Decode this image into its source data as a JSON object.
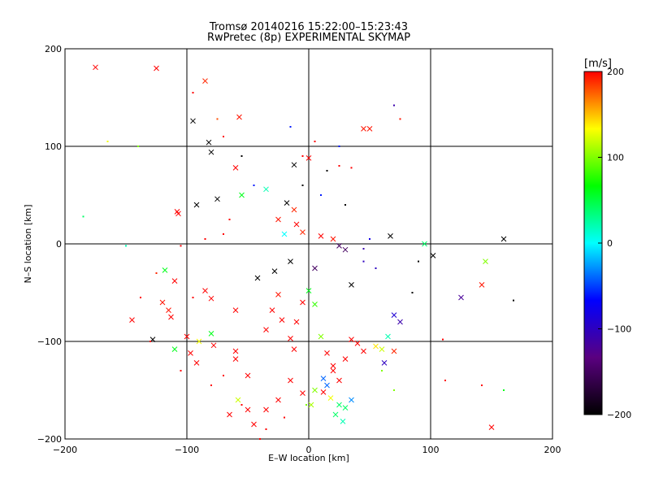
{
  "chart_data": {
    "type": "scatter",
    "title": "Tromsø 20140216 15:22:00–15:23:43",
    "subtitle": "RwPretec (8p) EXPERIMENTAL SKYMAP",
    "xlabel": "E–W location [km]",
    "ylabel": "N–S location [km]",
    "xlim": [
      -200,
      200
    ],
    "ylim": [
      -200,
      200
    ],
    "xticks": [
      -200,
      -100,
      0,
      100,
      200
    ],
    "yticks": [
      -200,
      -100,
      0,
      100,
      200
    ],
    "xtick_labels": [
      "−200",
      "−100",
      "0",
      "100",
      "200"
    ],
    "ytick_labels": [
      "−200",
      "−100",
      "0",
      "100",
      "200"
    ],
    "grid": true,
    "colorbar": {
      "label": "[m/s]",
      "range": [
        -200,
        200
      ],
      "ticks": [
        200,
        100,
        0,
        -100,
        -200
      ],
      "tick_labels": [
        "200",
        "100",
        "0",
        "−100",
        "−200"
      ],
      "colors": [
        "#000000",
        "#5a0080",
        "#0000ff",
        "#00ffff",
        "#00ff00",
        "#ffff00",
        "#ff0000"
      ]
    },
    "series": [
      {
        "marker": "x",
        "points": [
          [
            -175,
            181,
            200
          ],
          [
            -125,
            180,
            200
          ],
          [
            -85,
            167,
            190
          ],
          [
            -57,
            130,
            195
          ],
          [
            -95,
            126,
            -200
          ],
          [
            -82,
            104,
            -200
          ],
          [
            -80,
            94,
            -200
          ],
          [
            45,
            118,
            195
          ],
          [
            50,
            118,
            195
          ],
          [
            -60,
            78,
            200
          ],
          [
            -12,
            81,
            -200
          ],
          [
            0,
            88,
            200
          ],
          [
            -75,
            46,
            -200
          ],
          [
            -92,
            40,
            -200
          ],
          [
            -55,
            50,
            60
          ],
          [
            -35,
            56,
            20
          ],
          [
            -18,
            42,
            -200
          ],
          [
            -12,
            35,
            190
          ],
          [
            -25,
            25,
            195
          ],
          [
            -10,
            20,
            200
          ],
          [
            -108,
            33,
            200
          ],
          [
            -107,
            31,
            200
          ],
          [
            -20,
            10,
            0
          ],
          [
            -5,
            12,
            190
          ],
          [
            10,
            8,
            200
          ],
          [
            20,
            5,
            195
          ],
          [
            25,
            -2,
            -150
          ],
          [
            30,
            -6,
            -150
          ],
          [
            67,
            8,
            -200
          ],
          [
            95,
            0,
            40
          ],
          [
            102,
            -12,
            -200
          ],
          [
            160,
            5,
            -200
          ],
          [
            145,
            -18,
            100
          ],
          [
            142,
            -42,
            195
          ],
          [
            125,
            -55,
            -120
          ],
          [
            -118,
            -27,
            60
          ],
          [
            -110,
            -38,
            200
          ],
          [
            -85,
            -48,
            200
          ],
          [
            -80,
            -56,
            200
          ],
          [
            -60,
            -68,
            200
          ],
          [
            -60,
            -110,
            200
          ],
          [
            -120,
            -60,
            195
          ],
          [
            -115,
            -68,
            195
          ],
          [
            -113,
            -75,
            200
          ],
          [
            -145,
            -78,
            200
          ],
          [
            -128,
            -98,
            -200
          ],
          [
            -100,
            -95,
            200
          ],
          [
            -97,
            -112,
            200
          ],
          [
            -92,
            -122,
            200
          ],
          [
            -80,
            -92,
            60
          ],
          [
            -78,
            -104,
            200
          ],
          [
            -60,
            -118,
            200
          ],
          [
            -50,
            -135,
            200
          ],
          [
            -35,
            -88,
            200
          ],
          [
            -30,
            -68,
            200
          ],
          [
            -25,
            -52,
            195
          ],
          [
            -22,
            -78,
            200
          ],
          [
            -15,
            -97,
            200
          ],
          [
            -12,
            -108,
            200
          ],
          [
            -10,
            -80,
            200
          ],
          [
            -5,
            -60,
            200
          ],
          [
            0,
            -48,
            60
          ],
          [
            5,
            -62,
            80
          ],
          [
            10,
            -95,
            100
          ],
          [
            15,
            -112,
            200
          ],
          [
            20,
            -125,
            200
          ],
          [
            25,
            -140,
            200
          ],
          [
            30,
            -118,
            200
          ],
          [
            35,
            -98,
            200
          ],
          [
            40,
            -102,
            200
          ],
          [
            45,
            -110,
            200
          ],
          [
            55,
            -105,
            140
          ],
          [
            60,
            -108,
            120
          ],
          [
            65,
            -95,
            20
          ],
          [
            70,
            -110,
            190
          ],
          [
            70,
            -73,
            -90
          ],
          [
            75,
            -80,
            -110
          ],
          [
            62,
            -122,
            -100
          ],
          [
            12,
            -138,
            -40
          ],
          [
            15,
            -145,
            -40
          ],
          [
            5,
            -150,
            100
          ],
          [
            18,
            -158,
            130
          ],
          [
            25,
            -165,
            40
          ],
          [
            30,
            -168,
            40
          ],
          [
            35,
            -160,
            -30
          ],
          [
            22,
            -175,
            40
          ],
          [
            28,
            -182,
            20
          ],
          [
            2,
            -165,
            110
          ],
          [
            -5,
            -153,
            200
          ],
          [
            -15,
            -140,
            200
          ],
          [
            -25,
            -160,
            200
          ],
          [
            -35,
            -170,
            200
          ],
          [
            -45,
            -185,
            200
          ],
          [
            -50,
            -170,
            200
          ],
          [
            -58,
            -160,
            120
          ],
          [
            -65,
            -175,
            200
          ],
          [
            -90,
            -100,
            130
          ],
          [
            -110,
            -108,
            60
          ],
          [
            150,
            -188,
            200
          ],
          [
            12,
            -152,
            200
          ],
          [
            20,
            -130,
            200
          ],
          [
            -28,
            -28,
            -200
          ],
          [
            -15,
            -18,
            -200
          ],
          [
            5,
            -25,
            -150
          ],
          [
            35,
            -42,
            -200
          ],
          [
            -42,
            -35,
            -200
          ]
        ]
      },
      {
        "marker": "dot",
        "points": [
          [
            -165,
            105,
            130
          ],
          [
            -140,
            100,
            100
          ],
          [
            -185,
            28,
            40
          ],
          [
            -95,
            155,
            200
          ],
          [
            -75,
            128,
            180
          ],
          [
            -70,
            110,
            200
          ],
          [
            -55,
            90,
            -200
          ],
          [
            -15,
            120,
            -60
          ],
          [
            70,
            142,
            -110
          ],
          [
            75,
            128,
            195
          ],
          [
            5,
            105,
            200
          ],
          [
            25,
            80,
            200
          ],
          [
            35,
            78,
            200
          ],
          [
            15,
            75,
            -200
          ],
          [
            -45,
            60,
            -60
          ],
          [
            -5,
            60,
            -200
          ],
          [
            10,
            50,
            -60
          ],
          [
            30,
            40,
            -200
          ],
          [
            -65,
            25,
            200
          ],
          [
            -70,
            10,
            200
          ],
          [
            -85,
            5,
            200
          ],
          [
            -105,
            -2,
            200
          ],
          [
            -150,
            -2,
            20
          ],
          [
            -125,
            -30,
            190
          ],
          [
            -95,
            -55,
            200
          ],
          [
            -138,
            -55,
            200
          ],
          [
            -130,
            -100,
            200
          ],
          [
            -105,
            -130,
            200
          ],
          [
            -80,
            -145,
            200
          ],
          [
            -70,
            -135,
            200
          ],
          [
            -55,
            -165,
            200
          ],
          [
            -35,
            -190,
            200
          ],
          [
            -20,
            -178,
            200
          ],
          [
            -2,
            -165,
            100
          ],
          [
            60,
            -130,
            100
          ],
          [
            70,
            -150,
            100
          ],
          [
            110,
            -98,
            200
          ],
          [
            112,
            -140,
            200
          ],
          [
            142,
            -145,
            200
          ],
          [
            160,
            -150,
            60
          ],
          [
            168,
            -58,
            -200
          ],
          [
            85,
            -50,
            -200
          ],
          [
            90,
            -18,
            -200
          ],
          [
            55,
            -25,
            -100
          ],
          [
            45,
            -18,
            -100
          ],
          [
            45,
            -5,
            -110
          ],
          [
            50,
            5,
            -80
          ],
          [
            -5,
            90,
            200
          ],
          [
            25,
            100,
            -60
          ],
          [
            -40,
            -200,
            200
          ]
        ]
      }
    ]
  }
}
